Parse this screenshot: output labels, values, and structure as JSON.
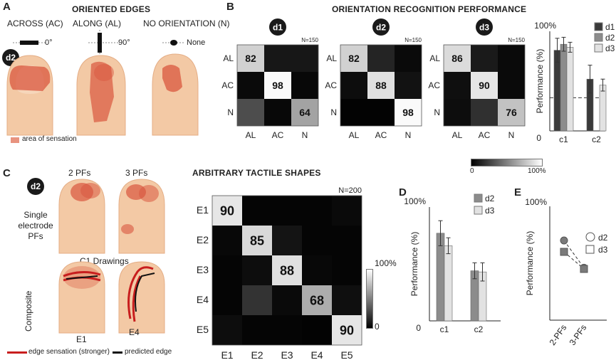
{
  "panel_a": {
    "label": "A",
    "title": "ORIENTED EDGES",
    "conditions": [
      {
        "name": "ACROSS (AC)",
        "marker": "0°"
      },
      {
        "name": "ALONG (AL)",
        "marker": "90°"
      },
      {
        "name": "NO ORIENTATION (N)",
        "marker": "None"
      }
    ],
    "subject": "d2",
    "legend": "area of sensation",
    "colors": {
      "skin": "#f3c9a5",
      "sensation": "#d9573f"
    }
  },
  "panel_b": {
    "label": "B",
    "title": "ORIENTATION RECOGNITION PERFORMANCE",
    "colorbar": {
      "min": "0",
      "max": "100%"
    }
  },
  "panel_c": {
    "label": "C",
    "subject": "d2",
    "col_labels": [
      "2 PFs",
      "3 PFs"
    ],
    "row1_label": "Single electrode PFs",
    "row1_lines": [
      "Single",
      "electrode",
      "PFs"
    ],
    "drawings_title": "C1 Drawings",
    "row2_label": "Composite",
    "finger_labels": [
      "E1",
      "E4"
    ],
    "legend_red": "edge sensation (stronger)",
    "legend_black": "predicted edge",
    "shapes_title": "ARBITRARY TACTILE SHAPES",
    "colorbar": {
      "max": "100%",
      "min": "0"
    }
  },
  "panel_d": {
    "label": "D"
  },
  "panel_e": {
    "label": "E"
  },
  "chart_data": [
    {
      "type": "heatmap",
      "subject": "d1",
      "n_label": "N=150",
      "rows": [
        "AL",
        "AC",
        "N"
      ],
      "cols": [
        "AL",
        "AC",
        "N"
      ],
      "values": [
        [
          82,
          9,
          9
        ],
        [
          4,
          98,
          3
        ],
        [
          30,
          3,
          64
        ]
      ]
    },
    {
      "type": "heatmap",
      "subject": "d2",
      "n_label": "N=150",
      "rows": [
        "AL",
        "AC",
        "N"
      ],
      "cols": [
        "AL",
        "AC",
        "N"
      ],
      "values": [
        [
          82,
          14,
          4
        ],
        [
          5,
          88,
          7
        ],
        [
          1,
          1,
          98
        ]
      ]
    },
    {
      "type": "heatmap",
      "subject": "d3",
      "n_label": "N=150",
      "rows": [
        "AL",
        "AC",
        "N"
      ],
      "cols": [
        "AL",
        "AC",
        "N"
      ],
      "values": [
        [
          86,
          10,
          4
        ],
        [
          6,
          90,
          4
        ],
        [
          5,
          19,
          76
        ]
      ]
    },
    {
      "type": "bar",
      "categories": [
        "c1",
        "c2"
      ],
      "series": [
        {
          "name": "d1",
          "values": [
            81,
            52
          ],
          "errors": [
            12,
            14
          ],
          "color": "#3a3a3a"
        },
        {
          "name": "d2",
          "values": [
            87,
            null
          ],
          "errors": [
            7,
            null
          ],
          "color": "#8c8c8c"
        },
        {
          "name": "d3",
          "values": [
            84,
            46
          ],
          "errors": [
            5,
            6
          ],
          "color": "#e2e2e2"
        }
      ],
      "ylabel": "Performance (%)",
      "ylim": [
        0,
        100
      ],
      "tick_labels": [
        "100%",
        "0"
      ],
      "chance": 33.3
    },
    {
      "type": "heatmap",
      "n_label": "N=200",
      "rows": [
        "E1",
        "E2",
        "E3",
        "E4",
        "E5"
      ],
      "cols": [
        "E1",
        "E2",
        "E3",
        "E4",
        "E5"
      ],
      "values": [
        [
          90,
          2,
          2,
          2,
          4
        ],
        [
          3,
          85,
          8,
          2,
          2
        ],
        [
          2,
          5,
          88,
          3,
          2
        ],
        [
          2,
          20,
          4,
          68,
          6
        ],
        [
          5,
          2,
          2,
          1,
          90
        ]
      ]
    },
    {
      "type": "bar",
      "categories": [
        "c1",
        "c2"
      ],
      "series": [
        {
          "name": "d2",
          "values": [
            77,
            44
          ],
          "errors": [
            11,
            7
          ],
          "color": "#8c8c8c"
        },
        {
          "name": "d3",
          "values": [
            66,
            43
          ],
          "errors": [
            7,
            8
          ],
          "color": "#e2e2e2"
        }
      ],
      "ylabel": "Performance (%)",
      "ylim": [
        0,
        100
      ],
      "tick_labels": [
        "100%",
        "0"
      ]
    },
    {
      "type": "scatter",
      "categories": [
        "2-PFs",
        "3-PFs"
      ],
      "series": [
        {
          "name": "d2",
          "marker": "circle",
          "values": [
            70,
            46
          ]
        },
        {
          "name": "d3",
          "marker": "square",
          "values": [
            60,
            45
          ]
        }
      ],
      "ylabel": "Performance (%)",
      "ylim": [
        0,
        100
      ],
      "tick_labels": [
        "100%"
      ]
    }
  ]
}
